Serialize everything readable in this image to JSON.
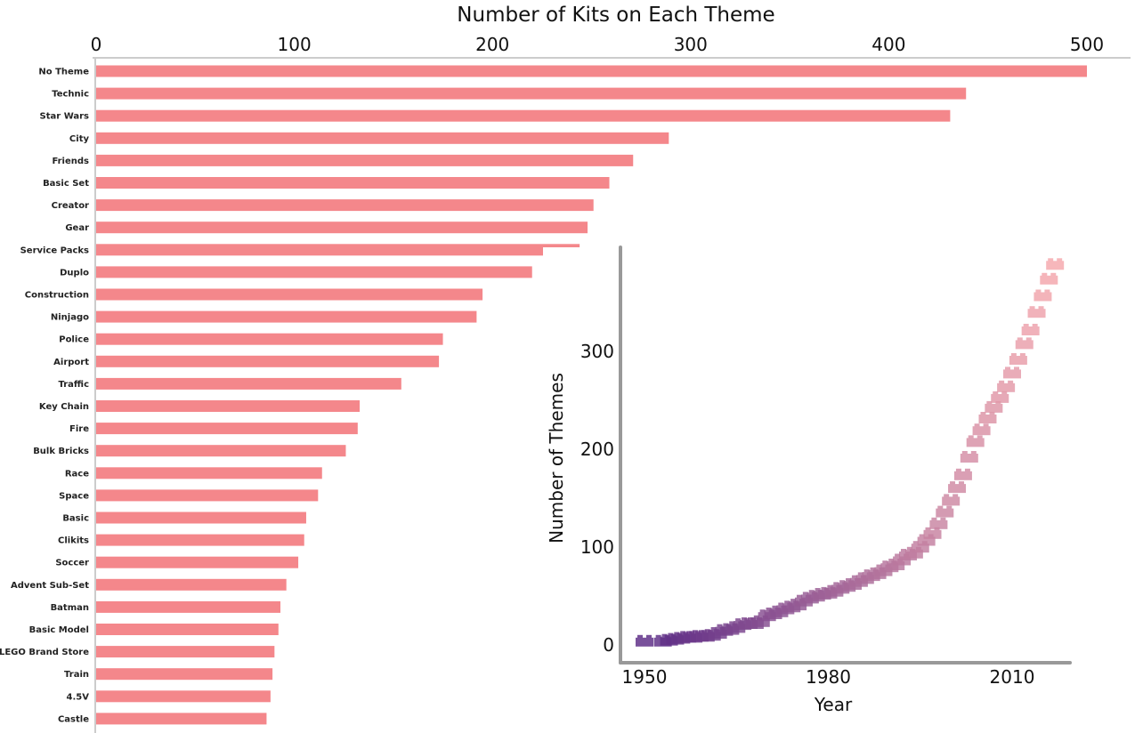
{
  "colors": {
    "bar": "#f4878b",
    "axis": "#cccccc",
    "inset_axis": "#999999",
    "brick_start": "#5c2c86",
    "brick_end": "#f6a8ad"
  },
  "chart_data": [
    {
      "type": "bar",
      "orientation": "horizontal",
      "title": "Number of Kits on Each Theme",
      "xlim": [
        0,
        500
      ],
      "xticks": [
        0,
        100,
        200,
        300,
        400,
        500
      ],
      "categories": [
        "No Theme",
        "Technic",
        "Star Wars",
        "City",
        "Friends",
        "Basic Set",
        "Creator",
        "Gear",
        "Service Packs",
        "Duplo",
        "Construction",
        "Ninjago",
        "Police",
        "Airport",
        "Traffic",
        "Key Chain",
        "Fire",
        "Bulk Bricks",
        "Race",
        "Space",
        "Basic",
        "Clikits",
        "Soccer",
        "Advent Sub-Set",
        "Batman",
        "Basic Model",
        "LEGO Brand Store",
        "Train",
        "4.5V",
        "Castle"
      ],
      "values": [
        500,
        439,
        431,
        289,
        271,
        259,
        251,
        248,
        244,
        220,
        195,
        192,
        175,
        173,
        154,
        133,
        132,
        126,
        114,
        112,
        106,
        105,
        102,
        96,
        93,
        92,
        90,
        89,
        88,
        86
      ]
    },
    {
      "type": "scatter",
      "marker": "lego-brick",
      "xlabel": "Year",
      "ylabel": "Number of Themes",
      "xticks": [
        1950,
        1980,
        2010
      ],
      "yticks": [
        0,
        100,
        200,
        300
      ],
      "xlim": [
        1947,
        2023
      ],
      "ylim": [
        -18,
        403
      ],
      "x": [
        1950,
        1953,
        1954,
        1955,
        1956,
        1957,
        1958,
        1959,
        1960,
        1961,
        1962,
        1963,
        1964,
        1965,
        1966,
        1967,
        1968,
        1969,
        1970,
        1971,
        1972,
        1973,
        1974,
        1975,
        1976,
        1977,
        1978,
        1979,
        1980,
        1981,
        1982,
        1983,
        1984,
        1985,
        1986,
        1987,
        1988,
        1989,
        1990,
        1991,
        1992,
        1993,
        1994,
        1995,
        1996,
        1997,
        1998,
        1999,
        2000,
        2001,
        2002,
        2003,
        2004,
        2005,
        2006,
        2007,
        2008,
        2009,
        2010,
        2011,
        2012,
        2013,
        2014,
        2015,
        2016,
        2017
      ],
      "y": [
        2,
        2,
        3,
        4,
        5,
        6,
        6,
        7,
        7,
        8,
        10,
        13,
        14,
        16,
        19,
        20,
        20,
        22,
        28,
        30,
        32,
        35,
        37,
        39,
        43,
        46,
        48,
        50,
        51,
        53,
        56,
        58,
        60,
        63,
        66,
        69,
        71,
        74,
        78,
        80,
        85,
        90,
        92,
        98,
        105,
        112,
        122,
        134,
        146,
        159,
        172,
        190,
        206,
        218,
        230,
        241,
        251,
        262,
        276,
        290,
        306,
        320,
        338,
        355,
        372,
        387
      ]
    }
  ]
}
